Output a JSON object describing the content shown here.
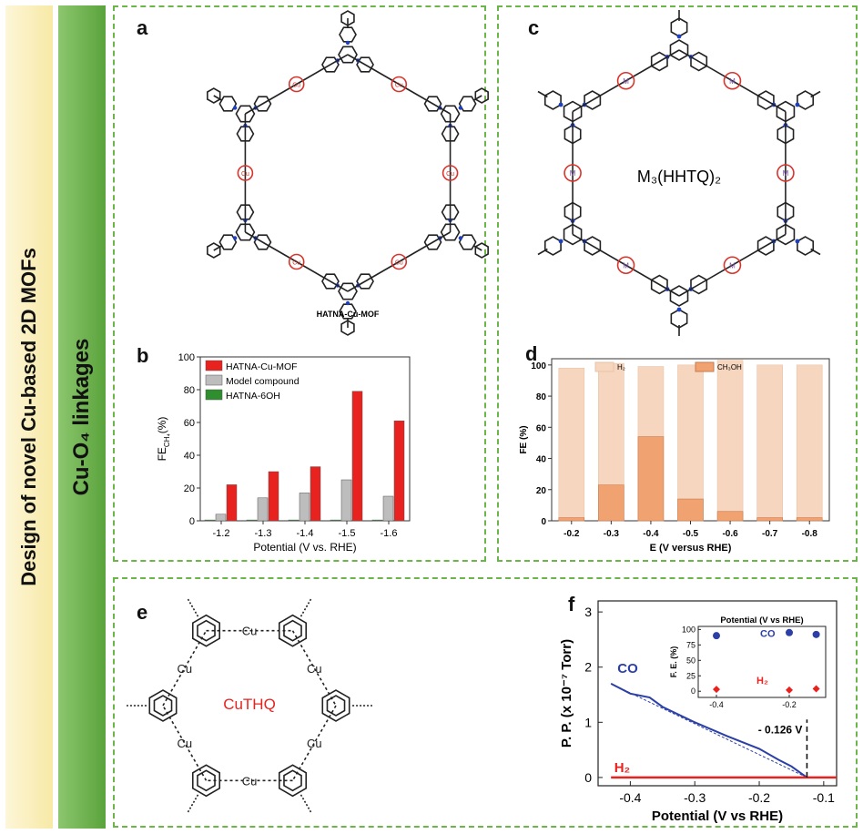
{
  "sidebar": {
    "title_outer": "Design of novel Cu-based 2D MOFs",
    "title_inner": "Cu-O₄ linkages"
  },
  "colors": {
    "dash_border": "#6cb548",
    "red": "#e8231f",
    "gray": "#bdbdbd",
    "green": "#2f8f2f",
    "peach_light": "#f7d6bf",
    "peach_dark": "#f0a271",
    "blue": "#2b3fa6"
  },
  "panels": {
    "a": {
      "label": "a",
      "caption": "HATNA-Cu-MOF",
      "metal": "Cu"
    },
    "b": {
      "label": "b"
    },
    "c": {
      "label": "c",
      "caption": "M₃(HHTQ)₂",
      "metal": "M"
    },
    "d": {
      "label": "d"
    },
    "e": {
      "label": "e",
      "caption": "CuTHQ",
      "metal": "Cu"
    },
    "f": {
      "label": "f"
    }
  },
  "chart_data": [
    {
      "id": "b",
      "type": "bar",
      "categories": [
        "-1.2",
        "-1.3",
        "-1.4",
        "-1.5",
        "-1.6"
      ],
      "series": [
        {
          "name": "HATNA-Cu-MOF",
          "values": [
            22,
            30,
            33,
            79,
            61
          ]
        },
        {
          "name": "Model compound",
          "values": [
            4,
            14,
            17,
            25,
            15
          ]
        },
        {
          "name": "HATNA-6OH",
          "values": [
            0.5,
            0.5,
            0.5,
            0.5,
            0.5
          ]
        }
      ],
      "xlabel": "Potential (V vs. RHE)",
      "ylabel": "FE",
      "ylabel_sub": "CH₄",
      "ylabel_unit": "(%)",
      "ylim": [
        0,
        100
      ],
      "yticks": [
        "0",
        "20",
        "40",
        "60",
        "80",
        "100"
      ],
      "legend": "top-left"
    },
    {
      "id": "d",
      "type": "bar",
      "categories": [
        "-0.2",
        "-0.3",
        "-0.4",
        "-0.5",
        "-0.6",
        "-0.7",
        "-0.8"
      ],
      "series": [
        {
          "name": "H₂",
          "values": [
            98,
            101,
            99,
            100,
            103,
            100,
            100
          ]
        },
        {
          "name": "CH₃OH",
          "values": [
            2,
            23,
            54,
            14,
            6,
            2,
            2
          ]
        }
      ],
      "xlabel": "E (V versus RHE)",
      "ylabel": "FE (%)",
      "ylim": [
        0,
        100
      ],
      "yticks": [
        "0",
        "20",
        "40",
        "60",
        "80",
        "100"
      ],
      "legend": "top"
    },
    {
      "id": "f",
      "type": "line",
      "xlabel": "Potential (V vs RHE)",
      "ylabel": "P. P. (x 10⁻⁷ Torr)",
      "xlim": [
        -0.45,
        -0.08
      ],
      "ylim": [
        -0.15,
        3.2
      ],
      "xticks": [
        "-0.4",
        "-0.3",
        "-0.2",
        "-0.1"
      ],
      "yticks": [
        "0",
        "1",
        "2",
        "3"
      ],
      "series": [
        {
          "name": "CO",
          "x": [
            -0.43,
            -0.4,
            -0.37,
            -0.35,
            -0.3,
            -0.25,
            -0.2,
            -0.17,
            -0.15,
            -0.126
          ],
          "y": [
            1.7,
            1.52,
            1.45,
            1.28,
            1.0,
            0.75,
            0.52,
            0.32,
            0.2,
            0.0
          ]
        },
        {
          "name": "H₂",
          "x": [
            -0.43,
            -0.08
          ],
          "y": [
            0.0,
            0.0
          ]
        }
      ],
      "annotation": "- 0.126 V",
      "onset": -0.126,
      "inset": {
        "title": "Potential (V vs RHE)",
        "ylabel": "F. E. (%)",
        "xlim": [
          -0.45,
          -0.1
        ],
        "ylim": [
          -10,
          105
        ],
        "xticks": [
          "-0.4",
          "-0.2"
        ],
        "yticks": [
          "0",
          "25",
          "50",
          "75",
          "100"
        ],
        "series": [
          {
            "name": "CO",
            "x": [
              -0.4,
              -0.2,
              -0.126
            ],
            "y": [
              90,
              95,
              92
            ]
          },
          {
            "name": "H₂",
            "x": [
              -0.4,
              -0.2,
              -0.126
            ],
            "y": [
              3,
              2,
              4
            ]
          }
        ]
      }
    }
  ]
}
